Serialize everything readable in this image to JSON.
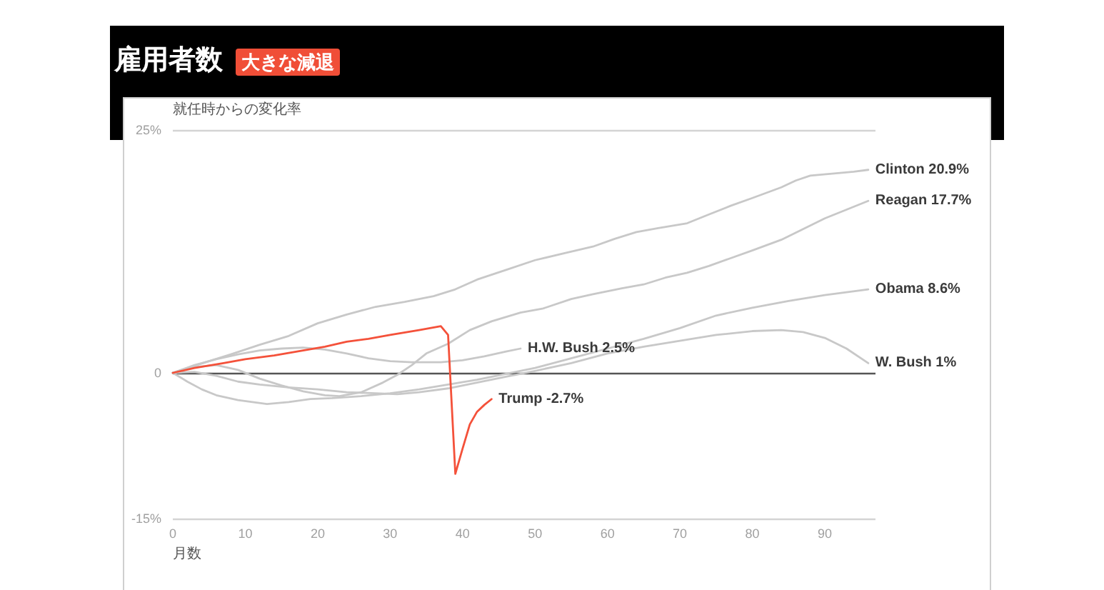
{
  "chart_data": {
    "type": "line",
    "title": "雇用者数",
    "subtitle": "大きな減退",
    "ylabel": "就任時からの変化率",
    "xlabel": "月数",
    "xlim": [
      0,
      97
    ],
    "xticks": [
      0,
      10,
      20,
      30,
      40,
      50,
      60,
      70,
      80,
      90
    ],
    "ylim": [
      -15,
      25
    ],
    "yticks": [
      {
        "value": 25,
        "label": "25%"
      },
      0,
      {
        "value": -15,
        "label": "-15%"
      }
    ],
    "grid": "y",
    "series": [
      {
        "name": "Reagan",
        "color": "#c8c8c8",
        "x": [
          0,
          3,
          6,
          9,
          12,
          15,
          18,
          21,
          23,
          26,
          29,
          31,
          33,
          35,
          38,
          41,
          44,
          48,
          51,
          55,
          58,
          62,
          65,
          68,
          71,
          74,
          77,
          80,
          84,
          87,
          90,
          93,
          96
        ],
        "values": [
          0,
          0.6,
          0.8,
          0.3,
          -0.6,
          -1.3,
          -1.9,
          -2.3,
          -2.4,
          -2.0,
          -1.0,
          -0.2,
          0.8,
          2.0,
          3.0,
          4.4,
          5.3,
          6.2,
          6.6,
          7.6,
          8.1,
          8.7,
          9.1,
          9.8,
          10.3,
          11.0,
          11.8,
          12.6,
          13.7,
          14.8,
          15.9,
          16.8,
          17.7
        ],
        "value_labels": [
          null,
          null,
          null,
          null,
          null,
          null,
          null,
          null,
          null,
          null,
          null,
          null,
          null,
          null,
          null,
          null,
          null,
          null,
          null,
          null,
          null,
          null,
          null,
          null,
          null,
          null,
          null,
          null,
          null,
          null,
          null,
          null,
          "17.7%"
        ]
      },
      {
        "name": "H.W. Bush",
        "color": "#c8c8c8",
        "x": [
          0,
          3,
          6,
          9,
          12,
          15,
          18,
          21,
          24,
          27,
          30,
          33,
          37,
          40,
          43,
          46,
          48
        ],
        "values": [
          0,
          0.8,
          1.4,
          1.9,
          2.3,
          2.5,
          2.6,
          2.4,
          2.0,
          1.5,
          1.2,
          1.1,
          1.1,
          1.3,
          1.7,
          2.2,
          2.5
        ],
        "value_labels": [
          null,
          null,
          null,
          null,
          null,
          null,
          null,
          null,
          null,
          null,
          null,
          null,
          null,
          null,
          null,
          null,
          "2.5%"
        ]
      },
      {
        "name": "Clinton",
        "color": "#c8c8c8",
        "x": [
          0,
          5,
          8,
          12,
          16,
          20,
          24,
          28,
          32,
          36,
          39,
          42,
          46,
          50,
          54,
          58,
          61,
          64,
          67,
          71,
          74,
          77,
          80,
          84,
          86,
          88,
          91,
          94,
          96
        ],
        "values": [
          0,
          1.2,
          1.9,
          2.9,
          3.8,
          5.1,
          6.0,
          6.8,
          7.3,
          7.9,
          8.6,
          9.6,
          10.6,
          11.6,
          12.3,
          13.0,
          13.8,
          14.5,
          14.9,
          15.4,
          16.3,
          17.2,
          18.0,
          19.1,
          19.8,
          20.3,
          20.5,
          20.7,
          20.9
        ],
        "value_labels": [
          null,
          null,
          null,
          null,
          null,
          null,
          null,
          null,
          null,
          null,
          null,
          null,
          null,
          null,
          null,
          null,
          null,
          null,
          null,
          null,
          null,
          null,
          null,
          null,
          null,
          null,
          null,
          null,
          "20.9%"
        ]
      },
      {
        "name": "W. Bush",
        "color": "#c8c8c8",
        "x": [
          0,
          3,
          6,
          9,
          12,
          16,
          20,
          24,
          28,
          31,
          34,
          38,
          42,
          46,
          50,
          55,
          60,
          65,
          70,
          75,
          80,
          84,
          87,
          90,
          93,
          96
        ],
        "values": [
          0,
          0.1,
          -0.3,
          -0.9,
          -1.2,
          -1.5,
          -1.7,
          -2.0,
          -2.1,
          -2.2,
          -2.0,
          -1.6,
          -1.0,
          -0.4,
          0.2,
          1.0,
          2.0,
          2.7,
          3.3,
          3.9,
          4.3,
          4.4,
          4.2,
          3.6,
          2.5,
          1.0
        ],
        "value_labels": [
          null,
          null,
          null,
          null,
          null,
          null,
          null,
          null,
          null,
          null,
          null,
          null,
          null,
          null,
          null,
          null,
          null,
          null,
          null,
          null,
          null,
          null,
          null,
          null,
          null,
          "1%"
        ]
      },
      {
        "name": "Obama",
        "color": "#c8c8c8",
        "x": [
          0,
          2,
          4,
          6,
          9,
          13,
          16,
          19,
          22,
          26,
          30,
          34,
          38,
          42,
          46,
          50,
          55,
          60,
          65,
          70,
          75,
          80,
          85,
          90,
          96
        ],
        "values": [
          0,
          -0.9,
          -1.7,
          -2.3,
          -2.8,
          -3.2,
          -3.0,
          -2.7,
          -2.6,
          -2.4,
          -2.1,
          -1.7,
          -1.2,
          -0.7,
          -0.1,
          0.5,
          1.5,
          2.5,
          3.5,
          4.6,
          5.9,
          6.7,
          7.4,
          8.0,
          8.6
        ],
        "value_labels": [
          null,
          null,
          null,
          null,
          null,
          null,
          null,
          null,
          null,
          null,
          null,
          null,
          null,
          null,
          null,
          null,
          null,
          null,
          null,
          null,
          null,
          null,
          null,
          null,
          "8.6%"
        ]
      },
      {
        "name": "Trump",
        "color": "#f4513a",
        "x": [
          0,
          3,
          7,
          10,
          14,
          18,
          21,
          24,
          27,
          30,
          34,
          37,
          38,
          39,
          40,
          41,
          42,
          43,
          44
        ],
        "values": [
          0,
          0.5,
          1.0,
          1.4,
          1.8,
          2.3,
          2.7,
          3.2,
          3.5,
          3.9,
          4.4,
          4.8,
          3.9,
          -10.4,
          -7.8,
          -5.3,
          -4.0,
          -3.3,
          -2.7
        ],
        "value_labels": [
          null,
          null,
          null,
          null,
          null,
          null,
          null,
          null,
          null,
          null,
          null,
          null,
          null,
          null,
          null,
          null,
          null,
          null,
          "-2.7%"
        ]
      }
    ]
  }
}
